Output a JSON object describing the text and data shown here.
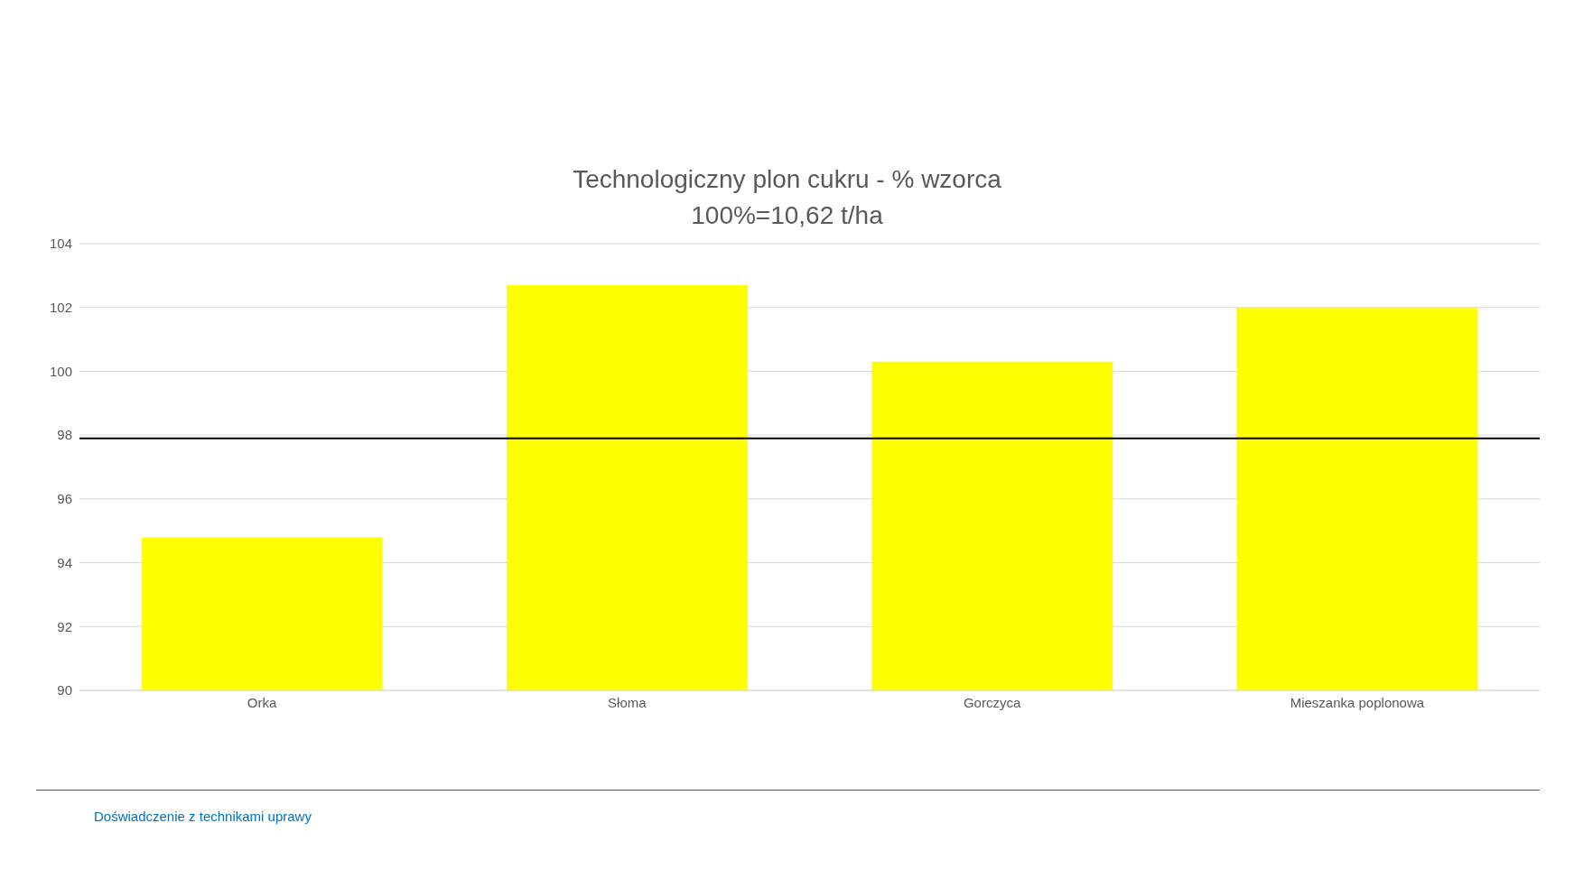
{
  "chart_data": {
    "type": "bar",
    "title": "Technologiczny plon cukru - % wzorca",
    "subtitle": "100%=10,62 t/ha",
    "categories": [
      "Orka",
      "Słoma",
      "Gorczyca",
      "Mieszanka poplonowa"
    ],
    "values": [
      94.8,
      102.7,
      100.3,
      102.0
    ],
    "color": "#ffff00",
    "ylim": [
      90,
      104
    ],
    "yticks": [
      90,
      92,
      94,
      96,
      98,
      100,
      102,
      104
    ],
    "grid": "y",
    "ref_lines": [
      {
        "axis": "y",
        "value": 97.9,
        "color": "#000000"
      }
    ],
    "annotations": [
      "Doświadczenie z technikami uprawy"
    ]
  }
}
